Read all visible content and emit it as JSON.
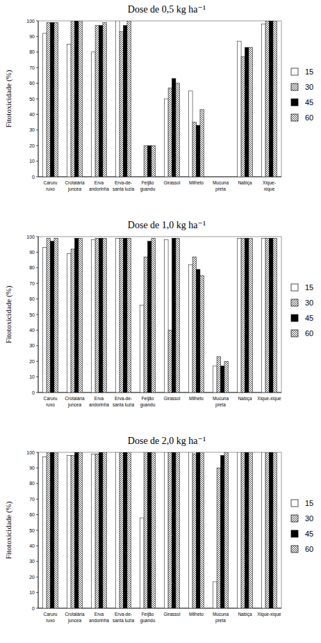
{
  "chart_data": [
    {
      "type": "bar",
      "title": "Dose de 0,5 kg ha⁻¹",
      "y_label": "Fitotoxicidade (%)",
      "categories": [
        "Caruru\nruxo",
        "Crotalária\njuncea",
        "Erva\nandorinha",
        "Erva-de-\nsanta luzia",
        "Feijão\nguandu",
        "Girassol",
        "Milheto",
        "Mucuna\npreta",
        "Nabiça",
        "Xique-\nxique"
      ],
      "series": [
        {
          "name": "15",
          "color": "#ffffff",
          "values": [
            92,
            85,
            80,
            100,
            0,
            50,
            55,
            0,
            87,
            98
          ]
        },
        {
          "name": "30",
          "color": "#ffffff",
          "values": [
            99,
            100,
            97,
            93,
            20,
            57,
            35,
            0,
            77,
            100
          ]
        },
        {
          "name": "45",
          "color": "#000000",
          "values": [
            99,
            100,
            97,
            97,
            20,
            63,
            33,
            0,
            83,
            100
          ]
        },
        {
          "name": "60",
          "color": "#ffffff",
          "values": [
            99,
            100,
            99,
            100,
            20,
            60,
            43,
            0,
            83,
            100
          ]
        }
      ],
      "ylim": [
        0,
        100
      ],
      "yticks": [
        0,
        10,
        20,
        30,
        40,
        50,
        60,
        70,
        80,
        90,
        100
      ],
      "grid": false,
      "legend": "right"
    },
    {
      "type": "bar",
      "title": "Dose de 1,0 kg ha⁻¹",
      "y_label": "Fitotoxicidade (%)",
      "categories": [
        "Caruru\nruxo",
        "Crotalária\njuncea",
        "Erva\nandorinha",
        "Erva-de-\nsanta luzia",
        "Feijão\nguandu",
        "Girassol",
        "Milheto",
        "Mucuna\npreta",
        "Nabiça",
        "Xique-xique"
      ],
      "series": [
        {
          "name": "15",
          "color": "#ffffff",
          "values": [
            93,
            89,
            98,
            99,
            56,
            98,
            82,
            17,
            99,
            99
          ]
        },
        {
          "name": "30",
          "color": "#ffffff",
          "values": [
            99,
            92,
            99,
            99,
            87,
            40,
            87,
            23,
            99,
            99
          ]
        },
        {
          "name": "45",
          "color": "#000000",
          "values": [
            97,
            99,
            99,
            99,
            97,
            99,
            79,
            17,
            99,
            99
          ]
        },
        {
          "name": "60",
          "color": "#ffffff",
          "values": [
            99,
            99,
            99,
            99,
            99,
            99,
            75,
            20,
            99,
            99
          ]
        }
      ],
      "ylim": [
        0,
        100
      ],
      "yticks": [
        0,
        10,
        20,
        30,
        40,
        50,
        60,
        70,
        80,
        90,
        100
      ],
      "grid": false,
      "legend": "right"
    },
    {
      "type": "bar",
      "title": "Dose de 2,0 kg ha⁻¹",
      "y_label": "Fitotoxicidade (%)",
      "categories": [
        "Caruru\nruxo",
        "Crotalária\njuncea",
        "Erva\nandorinha",
        "Erva-de-\nsanta luzia",
        "Feijão\nguandu",
        "Girassol",
        "Milheto",
        "Mucuna\npreta",
        "Nabiça",
        "Xique-xique"
      ],
      "series": [
        {
          "name": "15",
          "color": "#ffffff",
          "values": [
            97,
            98,
            99,
            100,
            58,
            100,
            100,
            17,
            100,
            100
          ]
        },
        {
          "name": "30",
          "color": "#ffffff",
          "values": [
            100,
            98,
            99,
            100,
            100,
            100,
            99,
            90,
            100,
            100
          ]
        },
        {
          "name": "45",
          "color": "#000000",
          "values": [
            100,
            100,
            100,
            100,
            100,
            100,
            100,
            98,
            100,
            100
          ]
        },
        {
          "name": "60",
          "color": "#ffffff",
          "values": [
            100,
            100,
            100,
            100,
            100,
            100,
            100,
            100,
            100,
            100
          ]
        }
      ],
      "ylim": [
        0,
        100
      ],
      "yticks": [
        0,
        10,
        20,
        30,
        40,
        50,
        60,
        70,
        80,
        90,
        100
      ],
      "grid": false,
      "legend": "right"
    }
  ]
}
